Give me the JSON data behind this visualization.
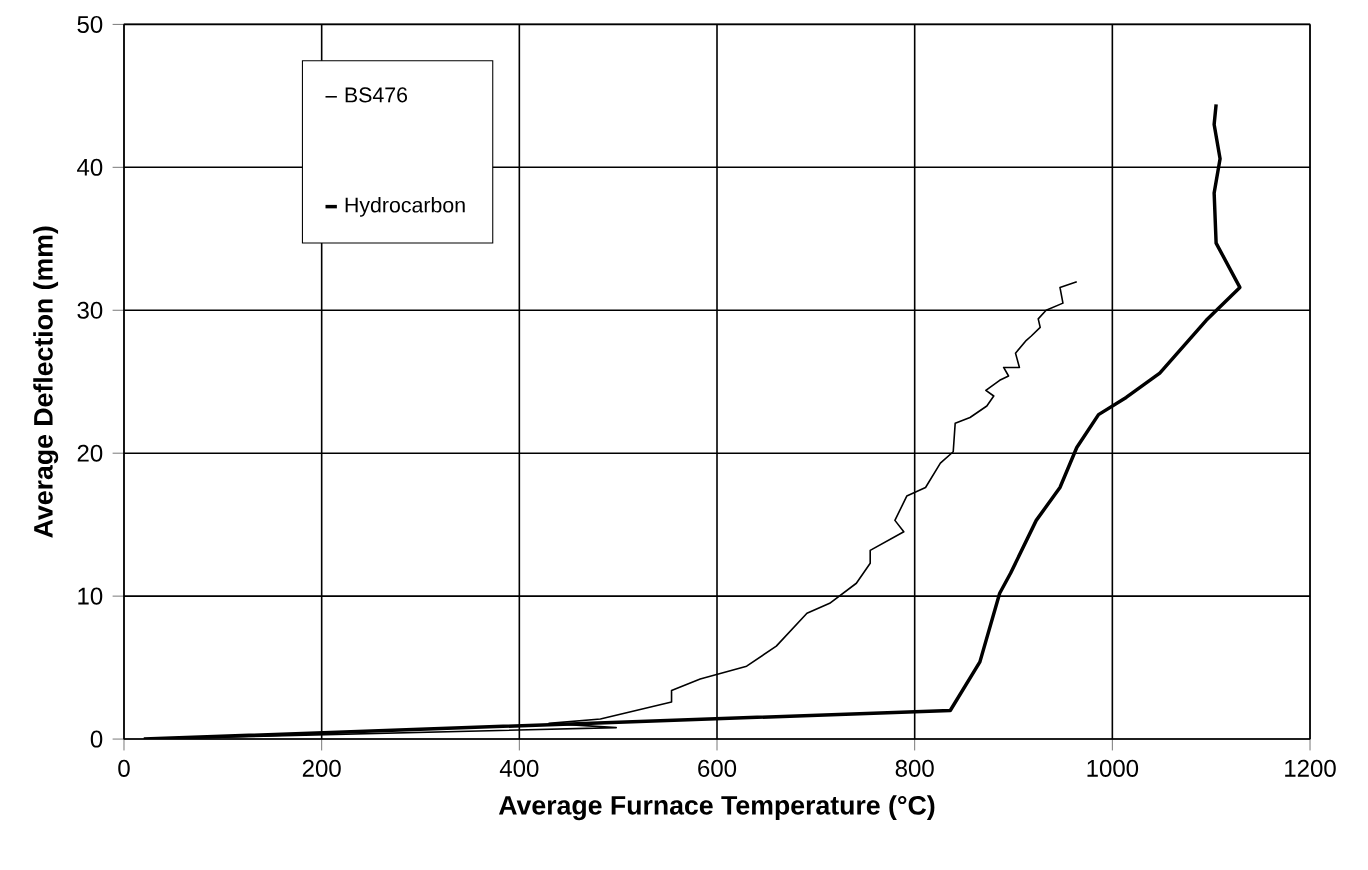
{
  "chart_data": {
    "type": "line",
    "xlabel": "Average Furnace Temperature (°C)",
    "ylabel": "Average Deflection (mm)",
    "xlim": [
      0,
      1200
    ],
    "ylim": [
      0,
      50
    ],
    "xticks": [
      0,
      200,
      400,
      600,
      800,
      1000,
      1200
    ],
    "yticks": [
      0,
      10,
      20,
      30,
      40,
      50
    ],
    "grid": true,
    "legend": "top left",
    "marker": "none",
    "line_style": "solid",
    "series": [
      {
        "name": "BS476",
        "color": "#000000",
        "x": [
          20,
          498,
          430,
          482,
          554,
          554,
          583,
          630,
          660,
          691,
          714,
          741,
          755,
          755,
          789,
          780,
          792,
          811,
          826,
          839,
          841,
          856,
          873,
          880,
          872,
          886,
          895,
          890,
          906,
          902,
          913,
          918,
          927,
          925,
          933,
          950,
          947,
          964
        ],
        "values": [
          0,
          0.8,
          1.1,
          1.4,
          2.6,
          3.4,
          4.2,
          5.1,
          6.5,
          8.8,
          9.5,
          10.9,
          12.3,
          13.2,
          14.5,
          15.3,
          17.0,
          17.6,
          19.3,
          20.1,
          22.1,
          22.5,
          23.3,
          24.0,
          24.4,
          25.1,
          25.4,
          26.0,
          26.0,
          27.0,
          27.9,
          28.2,
          28.8,
          29.4,
          30.0,
          30.5,
          31.6,
          32.0
        ]
      },
      {
        "name": "Hydrocarbon",
        "color": "#000000",
        "x": [
          20,
          836,
          866,
          886,
          897,
          923,
          947,
          964,
          986,
          1014,
          1048,
          1095,
          1129,
          1105,
          1103,
          1109,
          1103,
          1105
        ],
        "values": [
          0,
          2.0,
          5.4,
          10.2,
          11.6,
          15.3,
          17.6,
          20.4,
          22.7,
          23.9,
          25.6,
          29.3,
          31.6,
          34.7,
          38.2,
          40.6,
          43.0,
          44.4
        ]
      }
    ]
  }
}
